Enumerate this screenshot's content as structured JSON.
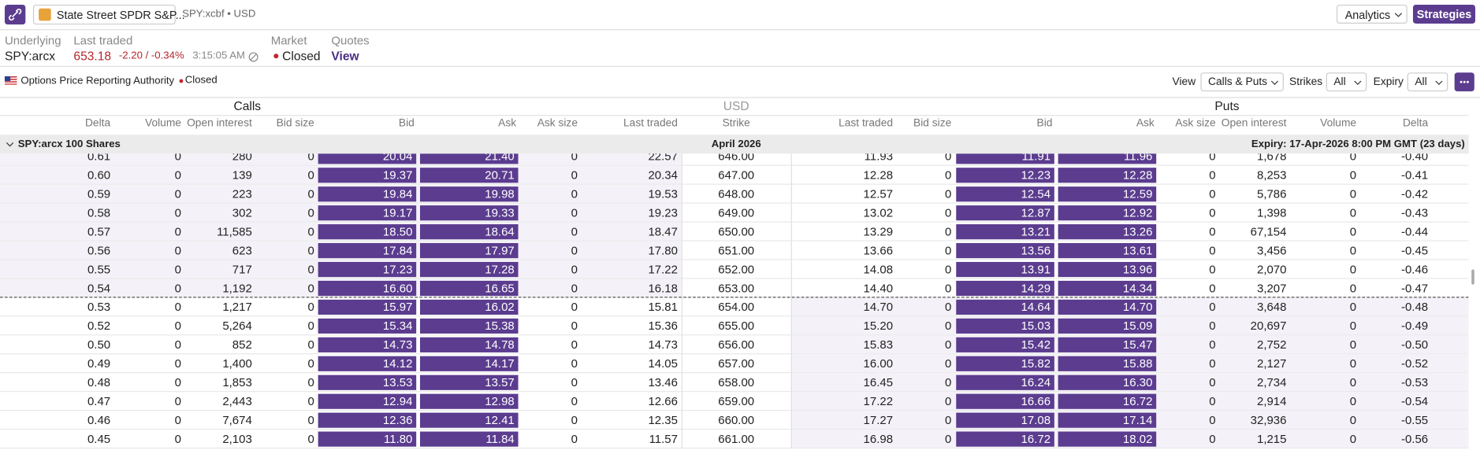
{
  "header": {
    "symbol_name": "State Street SPDR S&P...",
    "symbol_meta": "SPY:xcbf • USD",
    "analytics": "Analytics",
    "strategies": "Strategies"
  },
  "info": {
    "underlying_label": "Underlying",
    "underlying": "SPY:arcx",
    "last_traded_label": "Last traded",
    "last_price": "653.18",
    "change": "-2.20 / -0.34%",
    "time": "3:15:05 AM",
    "market_label": "Market",
    "market": "Closed",
    "quotes_label": "Quotes",
    "quotes": "View"
  },
  "toolbar": {
    "source": "Options Price Reporting Authority",
    "status": "Closed",
    "view_label": "View",
    "view": "Calls & Puts",
    "strikes_label": "Strikes",
    "strikes": "All",
    "expiry_label": "Expiry",
    "expiry": "All"
  },
  "table": {
    "sections": [
      "Calls",
      "USD",
      "Puts"
    ],
    "columns": [
      "Delta",
      "Volume",
      "Open interest",
      "Bid size",
      "Bid",
      "Ask",
      "Ask size",
      "Last traded",
      "Strike",
      "Last traded",
      "Bid size",
      "Bid",
      "Ask",
      "Ask size",
      "Open interest",
      "Volume",
      "Delta"
    ],
    "group": {
      "underlying": "SPY:arcx 100 Shares",
      "month": "April 2026",
      "expiry": "Expiry: 17-Apr-2026 8:00 PM GMT (23 days)"
    },
    "rows": [
      [
        "0.61",
        "0",
        "280",
        "0",
        "20.04",
        "21.40",
        "0",
        "22.57",
        "646.00",
        "11.93",
        "0",
        "11.91",
        "11.96",
        "0",
        "1,678",
        "0",
        "-0.40"
      ],
      [
        "0.60",
        "0",
        "139",
        "0",
        "19.37",
        "20.71",
        "0",
        "20.34",
        "647.00",
        "12.28",
        "0",
        "12.23",
        "12.28",
        "0",
        "8,253",
        "0",
        "-0.41"
      ],
      [
        "0.59",
        "0",
        "223",
        "0",
        "19.84",
        "19.98",
        "0",
        "19.53",
        "648.00",
        "12.57",
        "0",
        "12.54",
        "12.59",
        "0",
        "5,786",
        "0",
        "-0.42"
      ],
      [
        "0.58",
        "0",
        "302",
        "0",
        "19.17",
        "19.33",
        "0",
        "19.23",
        "649.00",
        "13.02",
        "0",
        "12.87",
        "12.92",
        "0",
        "1,398",
        "0",
        "-0.43"
      ],
      [
        "0.57",
        "0",
        "11,585",
        "0",
        "18.50",
        "18.64",
        "0",
        "18.47",
        "650.00",
        "13.29",
        "0",
        "13.21",
        "13.26",
        "0",
        "67,154",
        "0",
        "-0.44"
      ],
      [
        "0.56",
        "0",
        "623",
        "0",
        "17.84",
        "17.97",
        "0",
        "17.80",
        "651.00",
        "13.66",
        "0",
        "13.56",
        "13.61",
        "0",
        "3,456",
        "0",
        "-0.45"
      ],
      [
        "0.55",
        "0",
        "717",
        "0",
        "17.23",
        "17.28",
        "0",
        "17.22",
        "652.00",
        "14.08",
        "0",
        "13.91",
        "13.96",
        "0",
        "2,070",
        "0",
        "-0.46"
      ],
      [
        "0.54",
        "0",
        "1,192",
        "0",
        "16.60",
        "16.65",
        "0",
        "16.18",
        "653.00",
        "14.40",
        "0",
        "14.29",
        "14.34",
        "0",
        "3,207",
        "0",
        "-0.47"
      ],
      [
        "0.53",
        "0",
        "1,217",
        "0",
        "15.97",
        "16.02",
        "0",
        "15.81",
        "654.00",
        "14.70",
        "0",
        "14.64",
        "14.70",
        "0",
        "3,648",
        "0",
        "-0.48"
      ],
      [
        "0.52",
        "0",
        "5,264",
        "0",
        "15.34",
        "15.38",
        "0",
        "15.36",
        "655.00",
        "15.20",
        "0",
        "15.03",
        "15.09",
        "0",
        "20,697",
        "0",
        "-0.49"
      ],
      [
        "0.50",
        "0",
        "852",
        "0",
        "14.73",
        "14.78",
        "0",
        "14.73",
        "656.00",
        "15.83",
        "0",
        "15.42",
        "15.47",
        "0",
        "2,752",
        "0",
        "-0.50"
      ],
      [
        "0.49",
        "0",
        "1,400",
        "0",
        "14.12",
        "14.17",
        "0",
        "14.05",
        "657.00",
        "16.00",
        "0",
        "15.82",
        "15.88",
        "0",
        "2,127",
        "0",
        "-0.52"
      ],
      [
        "0.48",
        "0",
        "1,853",
        "0",
        "13.53",
        "13.57",
        "0",
        "13.46",
        "658.00",
        "16.45",
        "0",
        "16.24",
        "16.30",
        "0",
        "2,734",
        "0",
        "-0.53"
      ],
      [
        "0.47",
        "0",
        "2,443",
        "0",
        "12.94",
        "12.98",
        "0",
        "12.66",
        "659.00",
        "17.22",
        "0",
        "16.66",
        "16.72",
        "0",
        "2,914",
        "0",
        "-0.54"
      ],
      [
        "0.46",
        "0",
        "7,674",
        "0",
        "12.36",
        "12.41",
        "0",
        "12.35",
        "660.00",
        "17.27",
        "0",
        "17.08",
        "17.14",
        "0",
        "32,936",
        "0",
        "-0.55"
      ],
      [
        "0.45",
        "0",
        "2,103",
        "0",
        "11.80",
        "11.84",
        "0",
        "11.57",
        "661.00",
        "16.98",
        "0",
        "16.72",
        "18.02",
        "0",
        "1,215",
        "0",
        "-0.56"
      ]
    ]
  }
}
